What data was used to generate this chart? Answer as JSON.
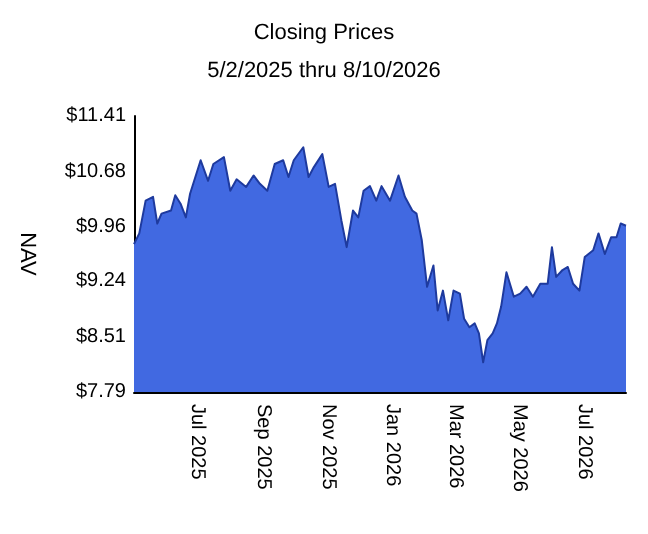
{
  "chart_data": {
    "type": "area",
    "title": "Closing Prices",
    "subtitle": "5/2/2025 thru 8/10/2026",
    "ylabel": "NAV",
    "x": [
      "2025-05-02",
      "2025-05-07",
      "2025-05-13",
      "2025-05-20",
      "2025-05-24",
      "2025-05-28",
      "2025-06-06",
      "2025-06-10",
      "2025-06-15",
      "2025-06-20",
      "2025-06-24",
      "2025-07-04",
      "2025-07-11",
      "2025-07-16",
      "2025-07-26",
      "2025-08-01",
      "2025-08-07",
      "2025-08-16",
      "2025-08-23",
      "2025-08-29",
      "2025-09-05",
      "2025-09-12",
      "2025-09-20",
      "2025-09-25",
      "2025-09-30",
      "2025-10-09",
      "2025-10-14",
      "2025-10-19",
      "2025-10-27",
      "2025-11-02",
      "2025-11-08",
      "2025-11-14",
      "2025-11-19",
      "2025-11-25",
      "2025-11-30",
      "2025-12-05",
      "2025-12-11",
      "2025-12-17",
      "2025-12-22",
      "2025-12-30",
      "2026-01-07",
      "2026-01-13",
      "2026-01-20",
      "2026-01-24",
      "2026-01-29",
      "2026-02-03",
      "2026-02-09",
      "2026-02-13",
      "2026-02-18",
      "2026-02-23",
      "2026-02-28",
      "2026-03-06",
      "2026-03-10",
      "2026-03-15",
      "2026-03-20",
      "2026-03-24",
      "2026-03-28",
      "2026-04-01",
      "2026-04-06",
      "2026-04-10",
      "2026-04-14",
      "2026-04-19",
      "2026-04-26",
      "2026-05-02",
      "2026-05-08",
      "2026-05-14",
      "2026-05-21",
      "2026-05-28",
      "2026-06-01",
      "2026-06-05",
      "2026-06-11",
      "2026-06-16",
      "2026-06-21",
      "2026-06-27",
      "2026-07-02",
      "2026-07-10",
      "2026-07-15",
      "2026-07-21",
      "2026-07-27",
      "2026-08-01",
      "2026-08-05",
      "2026-08-10"
    ],
    "series": [
      {
        "color": "#4169e1",
        "values": [
          9.73,
          9.87,
          10.3,
          10.35,
          10.0,
          10.13,
          10.17,
          10.37,
          10.26,
          10.08,
          10.39,
          10.83,
          10.56,
          10.78,
          10.87,
          10.43,
          10.58,
          10.48,
          10.63,
          10.52,
          10.43,
          10.78,
          10.83,
          10.61,
          10.83,
          11.0,
          10.61,
          10.74,
          10.91,
          10.48,
          10.52,
          10.04,
          9.69,
          10.17,
          10.08,
          10.43,
          10.49,
          10.3,
          10.49,
          10.3,
          10.63,
          10.35,
          10.17,
          10.13,
          9.78,
          9.17,
          9.45,
          8.86,
          9.12,
          8.73,
          9.12,
          9.08,
          8.75,
          8.64,
          8.69,
          8.56,
          8.18,
          8.47,
          8.56,
          8.69,
          8.91,
          9.36,
          9.04,
          9.08,
          9.17,
          9.04,
          9.21,
          9.21,
          9.69,
          9.3,
          9.39,
          9.43,
          9.21,
          9.12,
          9.56,
          9.65,
          9.87,
          9.6,
          9.82,
          9.82,
          10.0,
          9.97
        ]
      }
    ],
    "xlim": [
      "2025-05-02",
      "2026-08-10"
    ],
    "xticks": [
      {
        "value": "2025-07-01",
        "label": "Jul 2025"
      },
      {
        "value": "2025-09-01",
        "label": "Sep 2025"
      },
      {
        "value": "2025-11-01",
        "label": "Nov 2025"
      },
      {
        "value": "2026-01-01",
        "label": "Jan 2026"
      },
      {
        "value": "2026-03-01",
        "label": "Mar 2026"
      },
      {
        "value": "2026-05-01",
        "label": "May 2026"
      },
      {
        "value": "2026-07-01",
        "label": "Jul 2026"
      }
    ],
    "ylim": [
      7.79,
      11.41
    ],
    "yticks": [
      {
        "value": 7.79,
        "label": "$7.79"
      },
      {
        "value": 8.51,
        "label": "$8.51"
      },
      {
        "value": 9.24,
        "label": "$9.24"
      },
      {
        "value": 9.96,
        "label": "$9.96"
      },
      {
        "value": 10.68,
        "label": "$10.68"
      },
      {
        "value": 11.41,
        "label": "$11.41"
      }
    ],
    "grid": false,
    "marker": "none"
  }
}
